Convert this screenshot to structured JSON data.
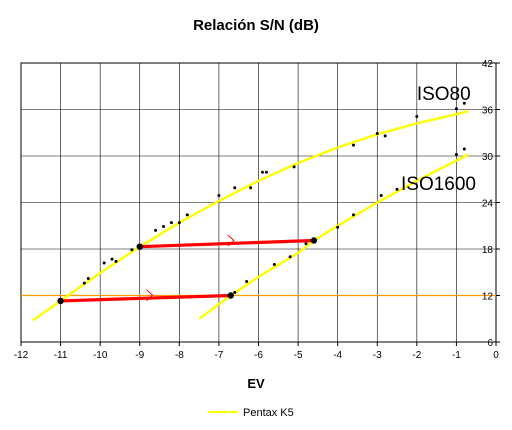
{
  "chart_data": {
    "type": "scatter",
    "title": "Relación S/N (dB)",
    "xlabel": "EV",
    "ylabel": "",
    "xlim": [
      -12,
      0
    ],
    "ylim": [
      6,
      42
    ],
    "x_ticks": [
      -12,
      -11,
      -10,
      -9,
      -8,
      -7,
      -6,
      -5,
      -4,
      -3,
      -2,
      -1,
      0
    ],
    "y_ticks": [
      6,
      12,
      18,
      24,
      30,
      36,
      42
    ],
    "y_axis_side": "right",
    "grid": true,
    "legend": {
      "position": "bottom",
      "entries": [
        "Pentax K5"
      ]
    },
    "colors": {
      "series": "#ffff00",
      "arrow": "#ff0000",
      "reference": "#ff9900",
      "grid": "#000000"
    },
    "series": [
      {
        "name": "Pentax K5",
        "label": "ISO80",
        "points": [
          [
            -10.4,
            13.6
          ],
          [
            -10.3,
            14.2
          ],
          [
            -9.9,
            16.2
          ],
          [
            -9.7,
            16.7
          ],
          [
            -9.6,
            16.4
          ],
          [
            -9.2,
            17.9
          ],
          [
            -9.0,
            18.4
          ],
          [
            -8.6,
            20.4
          ],
          [
            -8.4,
            20.9
          ],
          [
            -8.2,
            21.4
          ],
          [
            -8.0,
            21.4
          ],
          [
            -7.8,
            22.4
          ],
          [
            -7.0,
            24.9
          ],
          [
            -6.6,
            25.9
          ],
          [
            -6.2,
            25.9
          ],
          [
            -5.9,
            27.9
          ],
          [
            -5.8,
            27.9
          ],
          [
            -5.1,
            28.6
          ],
          [
            -3.6,
            31.4
          ],
          [
            -3.0,
            32.9
          ],
          [
            -2.8,
            32.6
          ],
          [
            -2.0,
            35.1
          ],
          [
            -1.0,
            36.1
          ],
          [
            -0.8,
            36.8
          ]
        ],
        "trend": [
          [
            -11.7,
            8.8
          ],
          [
            -11.0,
            11.3
          ],
          [
            -10.0,
            14.9
          ],
          [
            -9.0,
            18.3
          ],
          [
            -8.0,
            21.4
          ],
          [
            -7.0,
            24.2
          ],
          [
            -6.0,
            26.8
          ],
          [
            -5.0,
            29.1
          ],
          [
            -4.0,
            31.1
          ],
          [
            -3.0,
            32.8
          ],
          [
            -2.0,
            34.2
          ],
          [
            -1.0,
            35.4
          ],
          [
            -0.7,
            35.8
          ]
        ]
      },
      {
        "name": "Pentax K5",
        "label": "ISO1600",
        "points": [
          [
            -6.6,
            12.4
          ],
          [
            -6.3,
            13.8
          ],
          [
            -5.6,
            16.0
          ],
          [
            -5.2,
            17.0
          ],
          [
            -4.8,
            18.7
          ],
          [
            -4.0,
            20.8
          ],
          [
            -3.6,
            22.4
          ],
          [
            -2.9,
            24.9
          ],
          [
            -2.5,
            25.7
          ],
          [
            -1.0,
            30.2
          ],
          [
            -0.8,
            30.9
          ]
        ],
        "trend": [
          [
            -7.5,
            9.0
          ],
          [
            -6.7,
            12.0
          ],
          [
            -6.0,
            14.4
          ],
          [
            -5.0,
            17.5
          ],
          [
            -4.6,
            19.1
          ],
          [
            -4.0,
            21.0
          ],
          [
            -3.0,
            24.0
          ],
          [
            -2.0,
            26.8
          ],
          [
            -1.0,
            29.4
          ],
          [
            -0.7,
            30.2
          ]
        ]
      }
    ],
    "reference_lines": [
      {
        "axis": "y",
        "value": 12
      }
    ],
    "markers": [
      [
        -11.0,
        11.3
      ],
      [
        -6.7,
        12.0
      ],
      [
        -9.0,
        18.3
      ],
      [
        -4.6,
        19.1
      ]
    ],
    "arrows": [
      {
        "from": [
          -11.0,
          11.3
        ],
        "to": [
          -6.7,
          12.0
        ]
      },
      {
        "from": [
          -9.0,
          18.3
        ],
        "to": [
          -4.6,
          19.1
        ]
      }
    ],
    "annotations": [
      {
        "text": "ISO80",
        "x": -2.0,
        "y": 37.2
      },
      {
        "text": "ISO1600",
        "x": -2.4,
        "y": 25.6
      }
    ]
  }
}
